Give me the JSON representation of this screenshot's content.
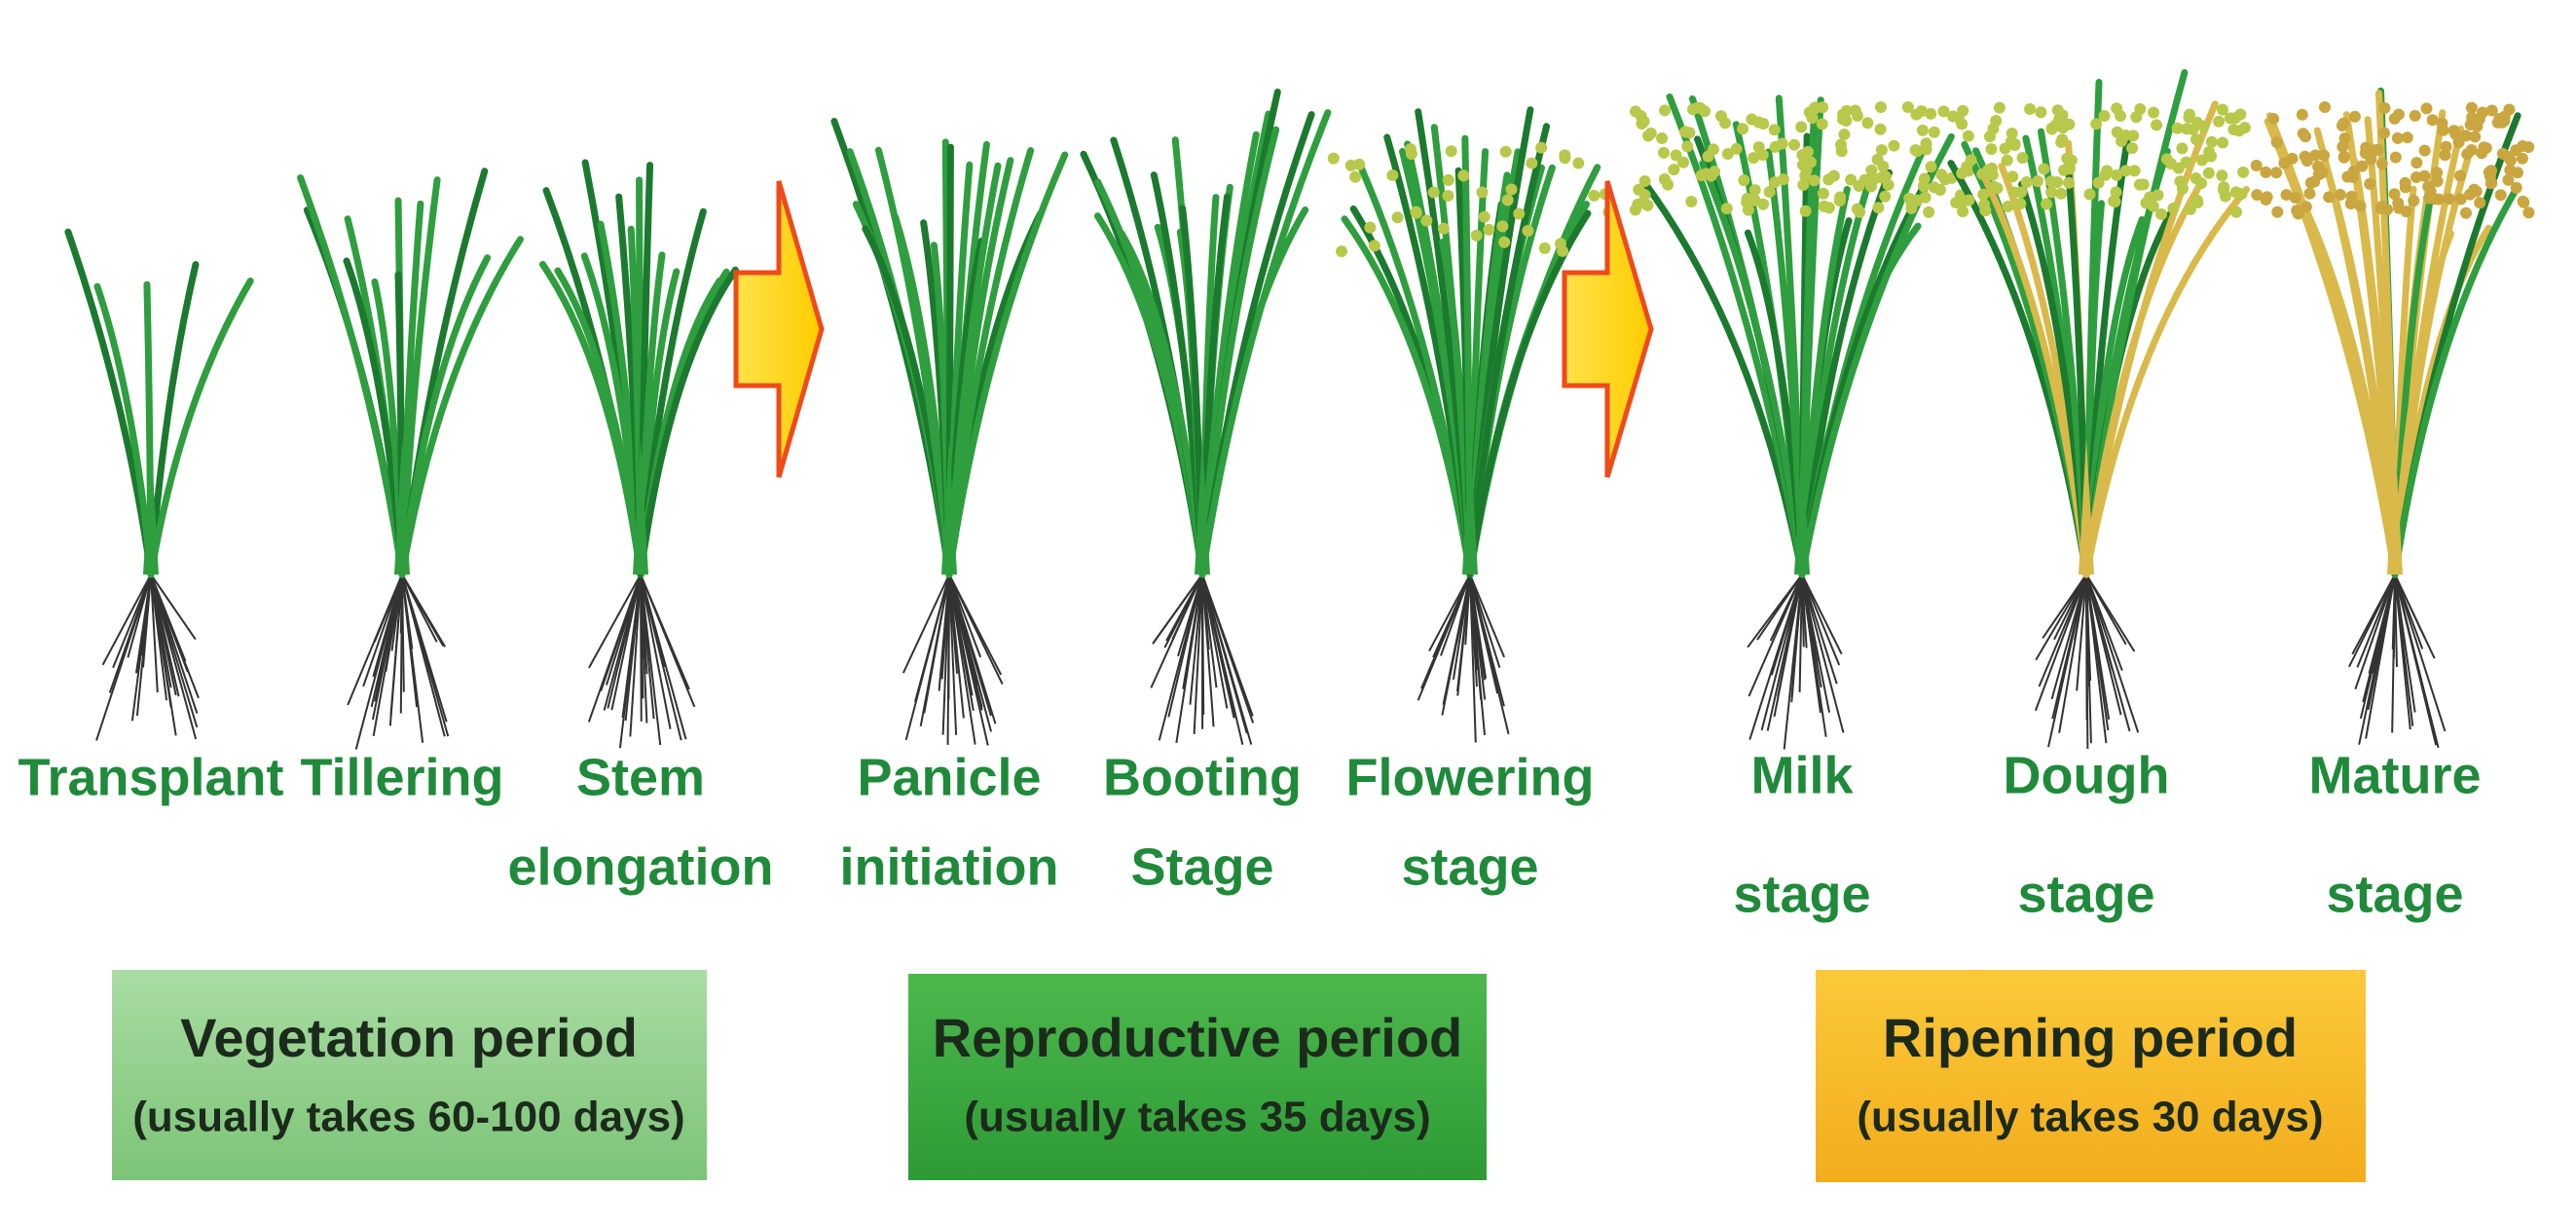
{
  "stages": [
    {
      "lines": [
        "Transplant"
      ]
    },
    {
      "lines": [
        "Tillering"
      ]
    },
    {
      "lines": [
        "Stem",
        "elongation"
      ]
    },
    {
      "lines": [
        "Panicle",
        "initiation"
      ]
    },
    {
      "lines": [
        "Booting",
        "Stage"
      ]
    },
    {
      "lines": [
        "Flowering",
        "stage"
      ]
    },
    {
      "lines": [
        "Milk",
        "stage"
      ]
    },
    {
      "lines": [
        "Dough",
        "stage"
      ]
    },
    {
      "lines": [
        "Mature",
        "stage"
      ]
    }
  ],
  "periods": [
    {
      "title": "Vegetation period",
      "subtitle": "(usually takes 60-100 days)"
    },
    {
      "title": "Reproductive period",
      "subtitle": "(usually takes 35 days)"
    },
    {
      "title": "Ripening period",
      "subtitle": "(usually takes 30 days)"
    }
  ]
}
